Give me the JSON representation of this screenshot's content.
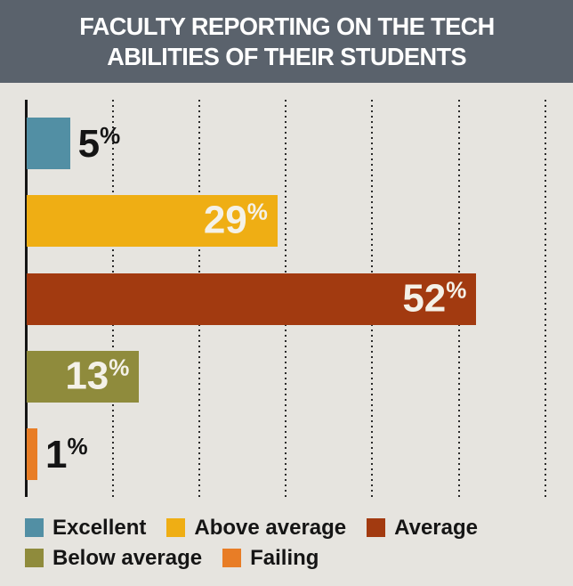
{
  "title": {
    "line1": "FACULTY REPORTING ON THE TECH",
    "line2": "ABILITIES OF THEIR STUDENTS"
  },
  "chart_data": {
    "type": "bar",
    "orientation": "horizontal",
    "title": "FACULTY REPORTING ON THE TECH ABILITIES OF THEIR STUDENTS",
    "categories": [
      "Excellent",
      "Above average",
      "Average",
      "Below average",
      "Failing"
    ],
    "values": [
      5,
      29,
      52,
      13,
      1
    ],
    "unit": "%",
    "bar_colors": [
      "#528fa4",
      "#efae14",
      "#a23a10",
      "#8f8b3c",
      "#e87d26"
    ],
    "xlabel": "",
    "ylabel": "",
    "x_axis": {
      "min": 0,
      "max": 63,
      "gridline_interval": 10,
      "gridlines_visible": true,
      "tick_labels_visible": false
    },
    "data_labels": [
      "5%",
      "29%",
      "52%",
      "13%",
      "1%"
    ],
    "legend": {
      "position": "bottom",
      "rows": [
        [
          "Excellent",
          "Above average",
          "Average"
        ],
        [
          "Below average",
          "Failing"
        ]
      ]
    }
  },
  "style": {
    "background": "#e6e4df",
    "title_background": "#5a626c",
    "title_text": "#ffffff",
    "gridline_color": "#2b2b2b",
    "axis_color": "#141414",
    "label_inside_color": "#f4f1e8",
    "label_outside_color": "#141414"
  }
}
